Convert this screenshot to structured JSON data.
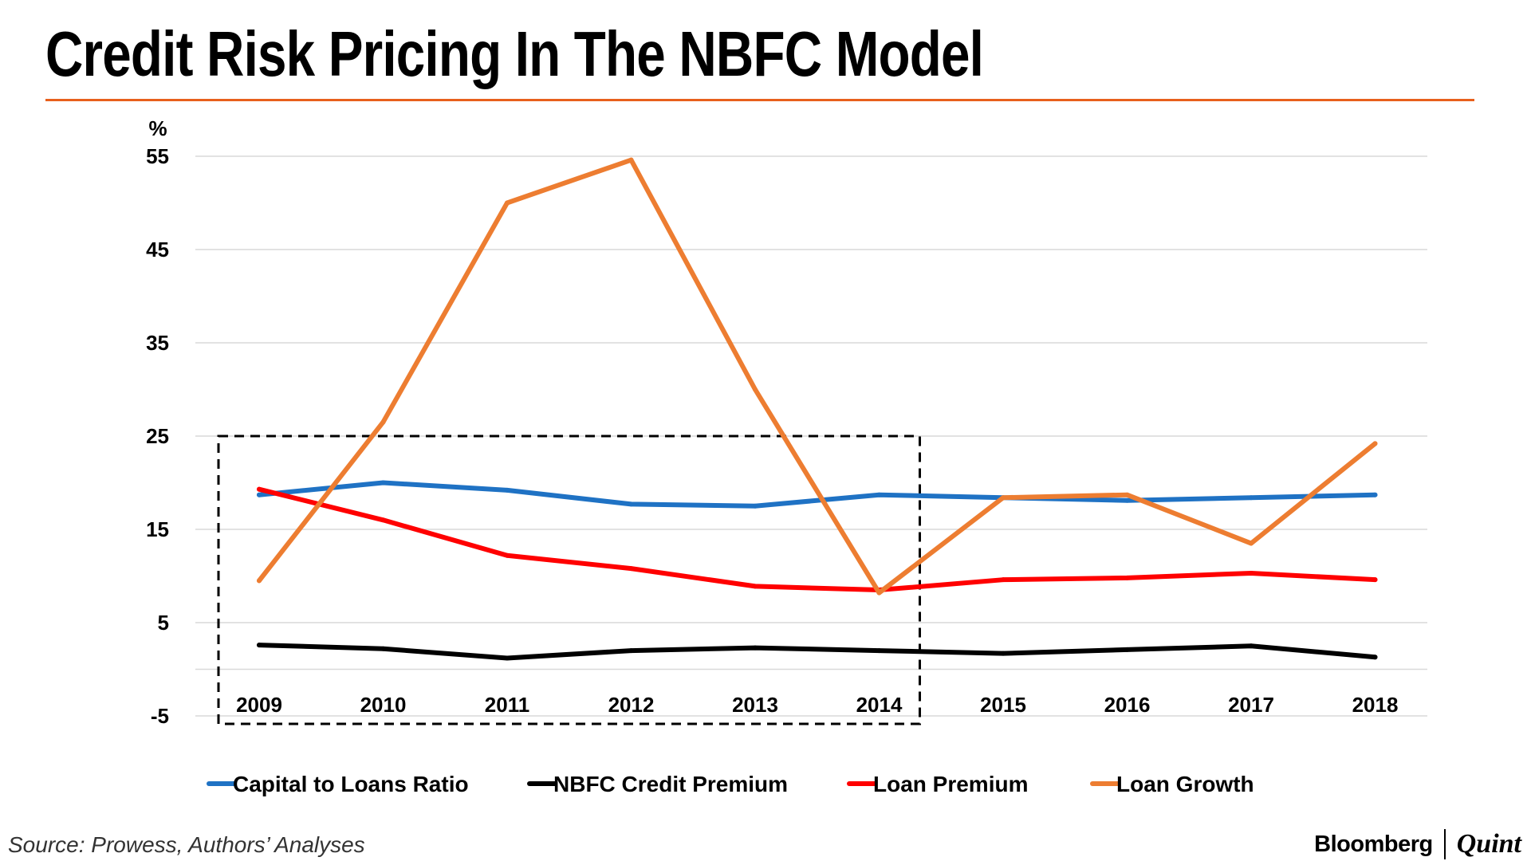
{
  "title": "Credit Risk Pricing In The NBFC Model",
  "source": "Source: Prowess, Authors’ Analyses",
  "brand": {
    "left": "Bloomberg",
    "right": "Quint"
  },
  "colors": {
    "accent_rule": "#e8601c",
    "capital": "#1f72c4",
    "nbfc": "#000000",
    "loan_premium": "#ff0000",
    "loan_growth": "#ed7d31",
    "grid": "#d9d9d9"
  },
  "chart_data": {
    "type": "line",
    "title": "Credit Risk Pricing In The NBFC Model",
    "xlabel": "",
    "ylabel": "%",
    "ylim": [
      -5,
      55
    ],
    "yticks": [
      55,
      45,
      35,
      25,
      15,
      5,
      -5
    ],
    "categories": [
      "2009",
      "2010",
      "2011",
      "2012",
      "2013",
      "2014",
      "2015",
      "2016",
      "2017",
      "2018"
    ],
    "highlight": {
      "from": "2009",
      "to": "2014",
      "ymax": 25,
      "style": "dashed"
    },
    "legend_position": "bottom",
    "series": [
      {
        "name": "Capital to Loans Ratio",
        "color": "#1f72c4",
        "values": [
          18.7,
          20.0,
          19.2,
          17.7,
          17.5,
          18.7,
          18.4,
          18.1,
          18.4,
          18.7
        ]
      },
      {
        "name": "NBFC Credit Premium",
        "color": "#000000",
        "values": [
          2.6,
          2.2,
          1.2,
          2.0,
          2.3,
          2.0,
          1.7,
          2.1,
          2.5,
          1.3
        ]
      },
      {
        "name": "Loan Premium",
        "color": "#ff0000",
        "values": [
          19.3,
          16.0,
          12.2,
          10.8,
          8.9,
          8.5,
          9.6,
          9.8,
          10.3,
          9.6
        ]
      },
      {
        "name": "Loan Growth",
        "color": "#ed7d31",
        "values": [
          9.5,
          26.5,
          50.0,
          54.6,
          30.0,
          8.2,
          18.4,
          18.7,
          13.5,
          24.2
        ]
      }
    ]
  }
}
